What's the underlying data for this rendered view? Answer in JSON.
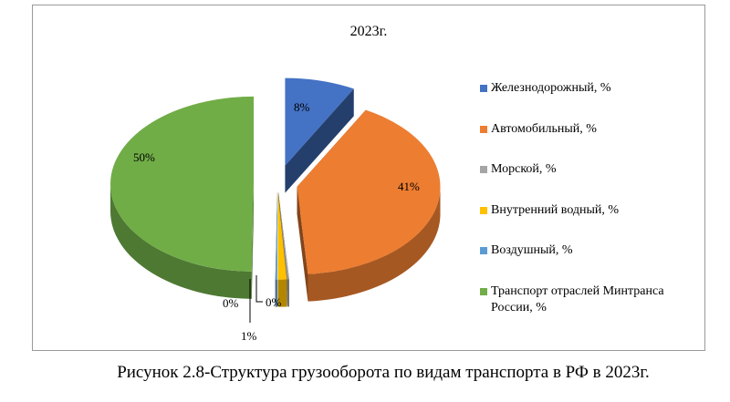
{
  "chart_data": {
    "type": "pie",
    "title": "2023г.",
    "labels": [
      "Железнодорожный, %",
      "Автомобильный, %",
      "Морской, %",
      "Внутренний водный, %",
      "Воздушный, %",
      "Транспорт отраслей Минтранса России, %"
    ],
    "values": [
      8,
      41,
      0,
      1,
      0,
      50
    ],
    "value_labels": [
      "8%",
      "41%",
      "0%",
      "1%",
      "0%",
      "50%"
    ],
    "colors": [
      "#4472c4",
      "#ed7d31",
      "#a5a5a5",
      "#ffc000",
      "#5b9bd5",
      "#70ad47"
    ],
    "legend": "right"
  },
  "caption": "Рисунок 2.8-Структура грузооборота по видам транспорта в РФ в 2023г."
}
